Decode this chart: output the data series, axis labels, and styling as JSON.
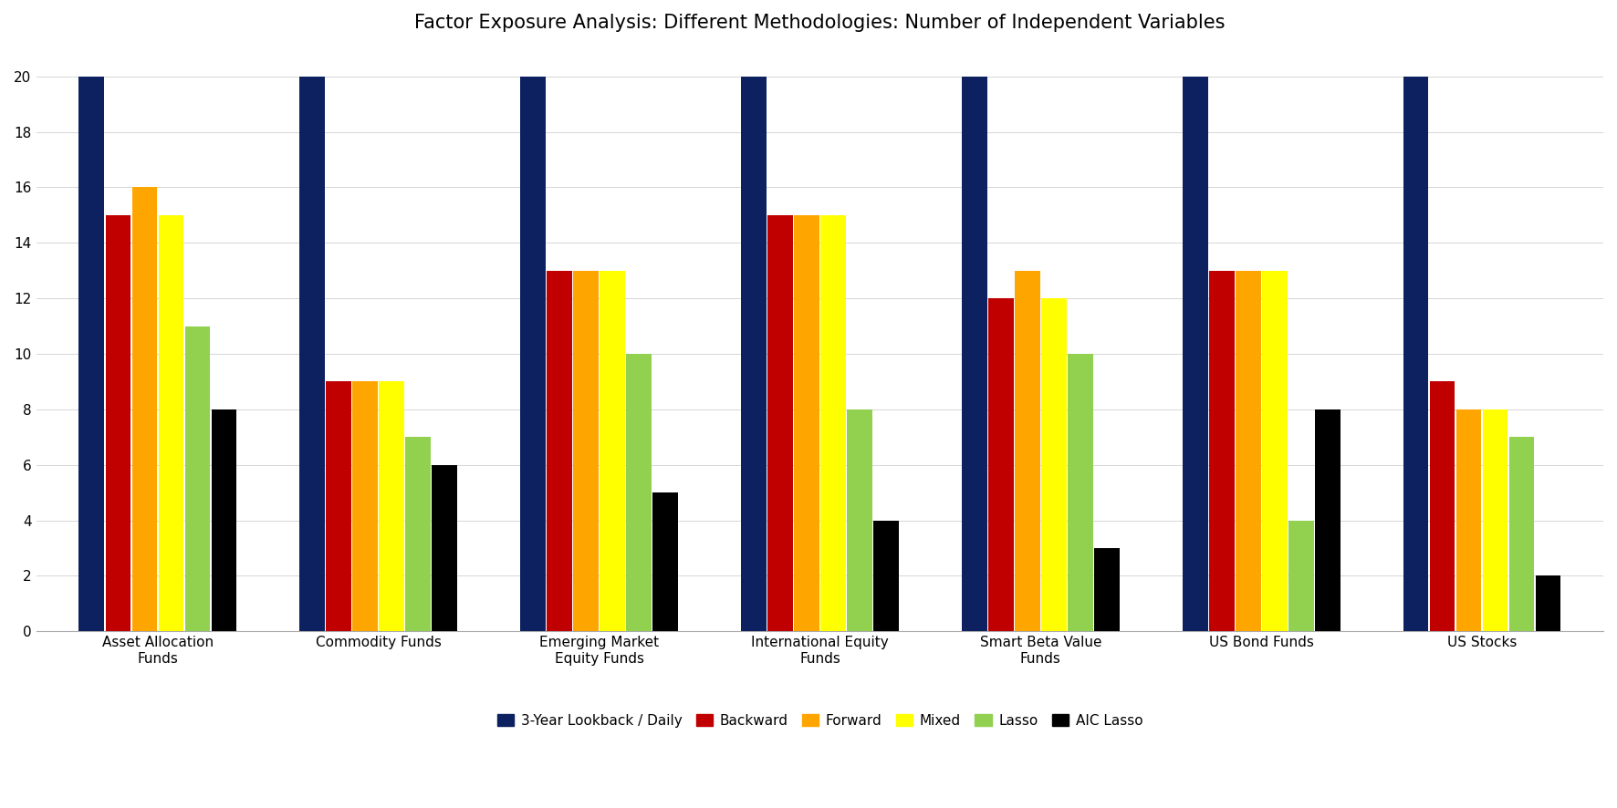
{
  "title": "Factor Exposure Analysis: Different Methodologies: Number of Independent Variables",
  "categories": [
    "Asset Allocation\nFunds",
    "Commodity Funds",
    "Emerging Market\nEquity Funds",
    "International Equity\nFunds",
    "Smart Beta Value\nFunds",
    "US Bond Funds",
    "US Stocks"
  ],
  "series": {
    "3-Year Lookback / Daily": [
      20,
      20,
      20,
      20,
      20,
      20,
      20
    ],
    "Backward": [
      15,
      9,
      13,
      15,
      12,
      13,
      9
    ],
    "Forward": [
      16,
      9,
      13,
      15,
      13,
      13,
      8
    ],
    "Mixed": [
      15,
      9,
      13,
      15,
      12,
      13,
      8
    ],
    "Lasso": [
      11,
      7,
      10,
      8,
      10,
      4,
      7
    ],
    "AIC Lasso": [
      8,
      6,
      5,
      4,
      3,
      8,
      2
    ]
  },
  "colors": {
    "3-Year Lookback / Daily": "#0d2060",
    "Backward": "#c00000",
    "Forward": "#ffa500",
    "Mixed": "#ffff00",
    "Lasso": "#92d050",
    "AIC Lasso": "#000000"
  },
  "ylim": [
    0,
    21
  ],
  "yticks": [
    0,
    2,
    4,
    6,
    8,
    10,
    12,
    14,
    16,
    18,
    20
  ],
  "bar_width": 0.115,
  "legend_order": [
    "3-Year Lookback / Daily",
    "Backward",
    "Forward",
    "Mixed",
    "Lasso",
    "AIC Lasso"
  ],
  "title_fontsize": 15,
  "tick_fontsize": 11,
  "legend_fontsize": 11,
  "background_color": "#ffffff"
}
